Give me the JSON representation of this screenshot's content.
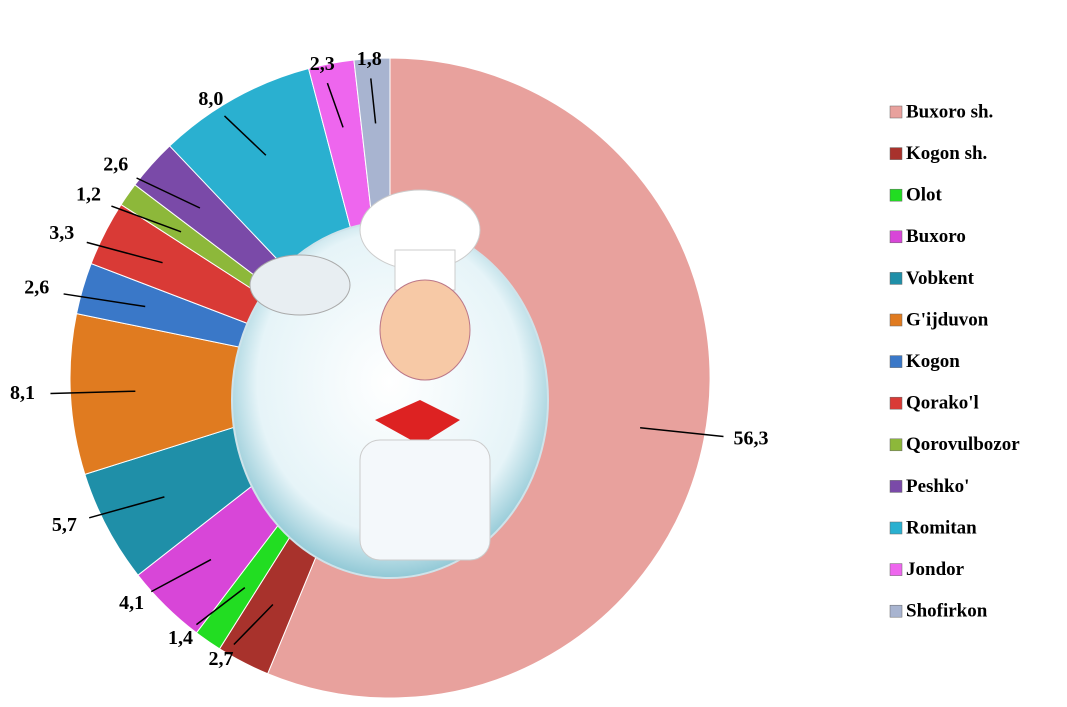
{
  "chart_data": {
    "type": "donut",
    "categories": [
      "Buxoro sh.",
      "Kogon sh.",
      "Olot",
      "Buxoro",
      "Vobkent",
      "G'ijduvon",
      "Kogon",
      "Qorako'l",
      "Qorovulbozor",
      "Peshko'",
      "Romitan",
      "Jondor",
      "Shofirkon"
    ],
    "values": [
      56.3,
      2.7,
      1.4,
      4.1,
      5.7,
      8.1,
      2.6,
      3.3,
      1.2,
      2.6,
      8.0,
      2.3,
      1.8
    ],
    "value_labels": [
      "56,3",
      "2,7",
      "1,4",
      "4,1",
      "5,7",
      "8,1",
      "2,6",
      "3,3",
      "1,2",
      "2,6",
      "8,0",
      "2,3",
      "1,8"
    ],
    "colors": [
      "#e8a19d",
      "#a8322c",
      "#22dd22",
      "#d846d8",
      "#1f8fa8",
      "#e07b20",
      "#3a78c8",
      "#d93a36",
      "#8db83a",
      "#7a4aa8",
      "#2ab0d0",
      "#ee66ee",
      "#a8b4d0"
    ],
    "legend": "right"
  }
}
